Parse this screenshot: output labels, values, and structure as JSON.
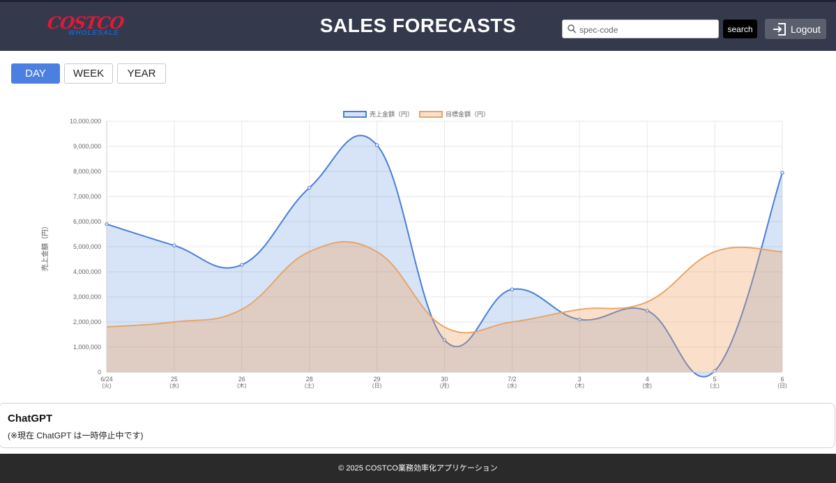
{
  "header": {
    "logo_top": "COSTCO",
    "logo_bottom": "WHOLESALE",
    "title": "SALES FORECASTS",
    "search_placeholder": "spec-code",
    "search_value": "",
    "search_button": "search",
    "logout_label": "Logout"
  },
  "tabs": [
    {
      "label": "DAY",
      "active": true
    },
    {
      "label": "WEEK",
      "active": false
    },
    {
      "label": "YEAR",
      "active": false
    }
  ],
  "chart_data": {
    "type": "area",
    "title": "",
    "ylabel": "売上金額（円）",
    "ylim": [
      0,
      10000000
    ],
    "ytick_labels": [
      "0",
      "1,000,000",
      "2,000,000",
      "3,000,000",
      "4,000,000",
      "5,000,000",
      "6,000,000",
      "7,000,000",
      "8,000,000",
      "9,000,000",
      "10,000,000"
    ],
    "categories": [
      [
        "6/24",
        "(火)"
      ],
      [
        "25",
        "(水)"
      ],
      [
        "26",
        "(木)"
      ],
      [
        "28",
        "(土)"
      ],
      [
        "29",
        "(日)"
      ],
      [
        "30",
        "(月)"
      ],
      [
        "7/2",
        "(水)"
      ],
      [
        "3",
        "(木)"
      ],
      [
        "4",
        "(金)"
      ],
      [
        "5",
        "(土)"
      ],
      [
        "6",
        "(日)"
      ]
    ],
    "legend_position": "top",
    "grid": true,
    "series": [
      {
        "name": "売上金額（円）",
        "color": "#4a7fd6",
        "fill": "rgba(74,127,214,0.22)",
        "values": [
          5900000,
          5050000,
          4280000,
          7350000,
          9050000,
          1280000,
          3300000,
          2100000,
          2450000,
          50000,
          7950000
        ]
      },
      {
        "name": "目標金額（円）",
        "color": "#e6a56b",
        "fill": "rgba(240,160,90,0.32)",
        "values": [
          1800000,
          2000000,
          2500000,
          4800000,
          4800000,
          1800000,
          2000000,
          2500000,
          2800000,
          4800000,
          4800000
        ]
      }
    ]
  },
  "chatgpt": {
    "title": "ChatGPT",
    "note": "(※現在 ChatGPT は一時停止中です)"
  },
  "footer": {
    "text": "© 2025 COSTCO業務効率化アプリケーション"
  },
  "colors": {
    "header_bg": "#343a4c",
    "accent": "#4b7fe0",
    "footer_bg": "#2a2a2a"
  }
}
